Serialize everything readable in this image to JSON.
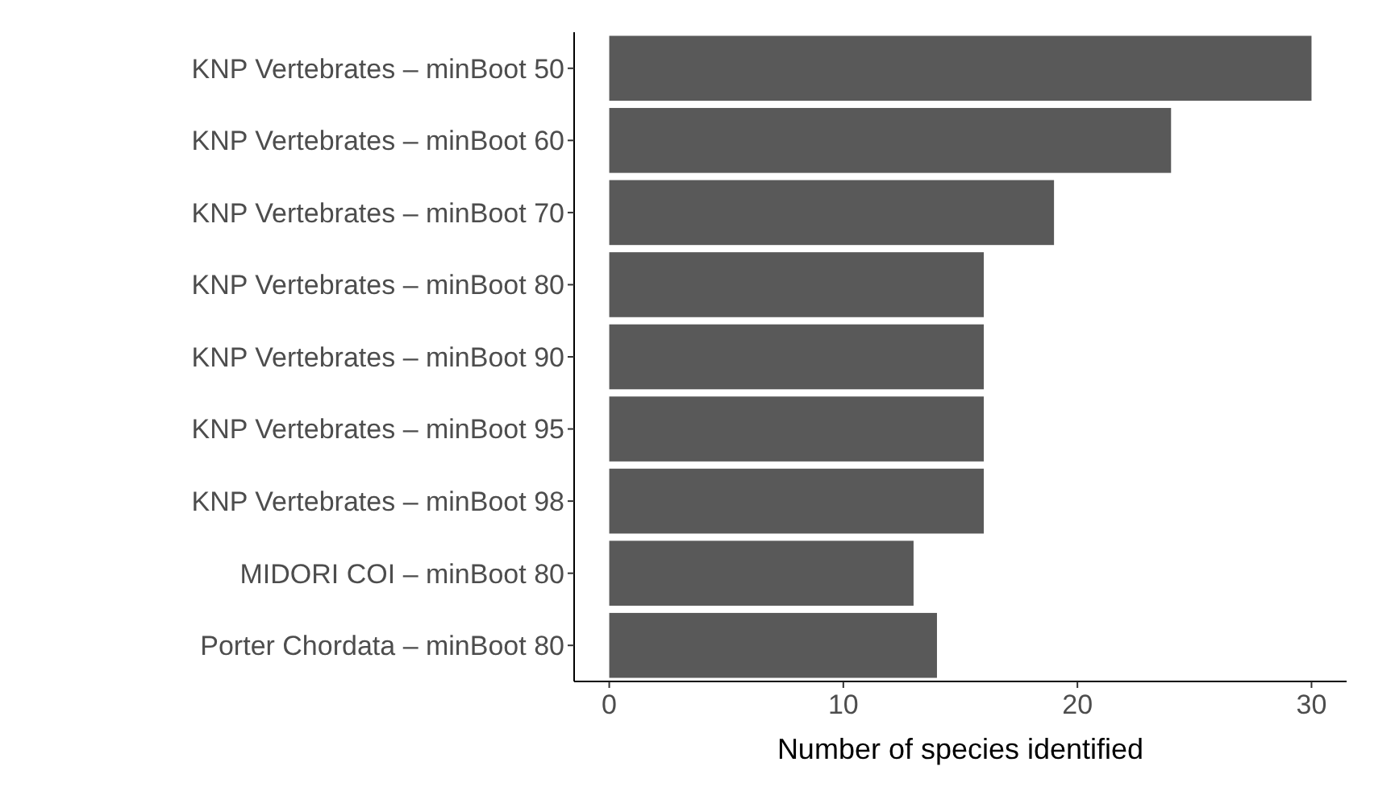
{
  "chart_data": {
    "type": "bar",
    "orientation": "horizontal",
    "xlabel": "Number of species identified",
    "categories": [
      "KNP Vertebrates – minBoot 50",
      "KNP Vertebrates – minBoot 60",
      "KNP Vertebrates – minBoot 70",
      "KNP Vertebrates – minBoot 80",
      "KNP Vertebrates – minBoot 90",
      "KNP Vertebrates – minBoot 95",
      "KNP Vertebrates – minBoot 98",
      "MIDORI COI – minBoot 80",
      "Porter Chordata – minBoot 80"
    ],
    "values": [
      30,
      24,
      19,
      16,
      16,
      16,
      16,
      13,
      14
    ],
    "color": "#595959",
    "xlim": [
      -1.5,
      31.5
    ],
    "xticks": [
      0,
      10,
      20,
      30
    ],
    "grid": false
  }
}
